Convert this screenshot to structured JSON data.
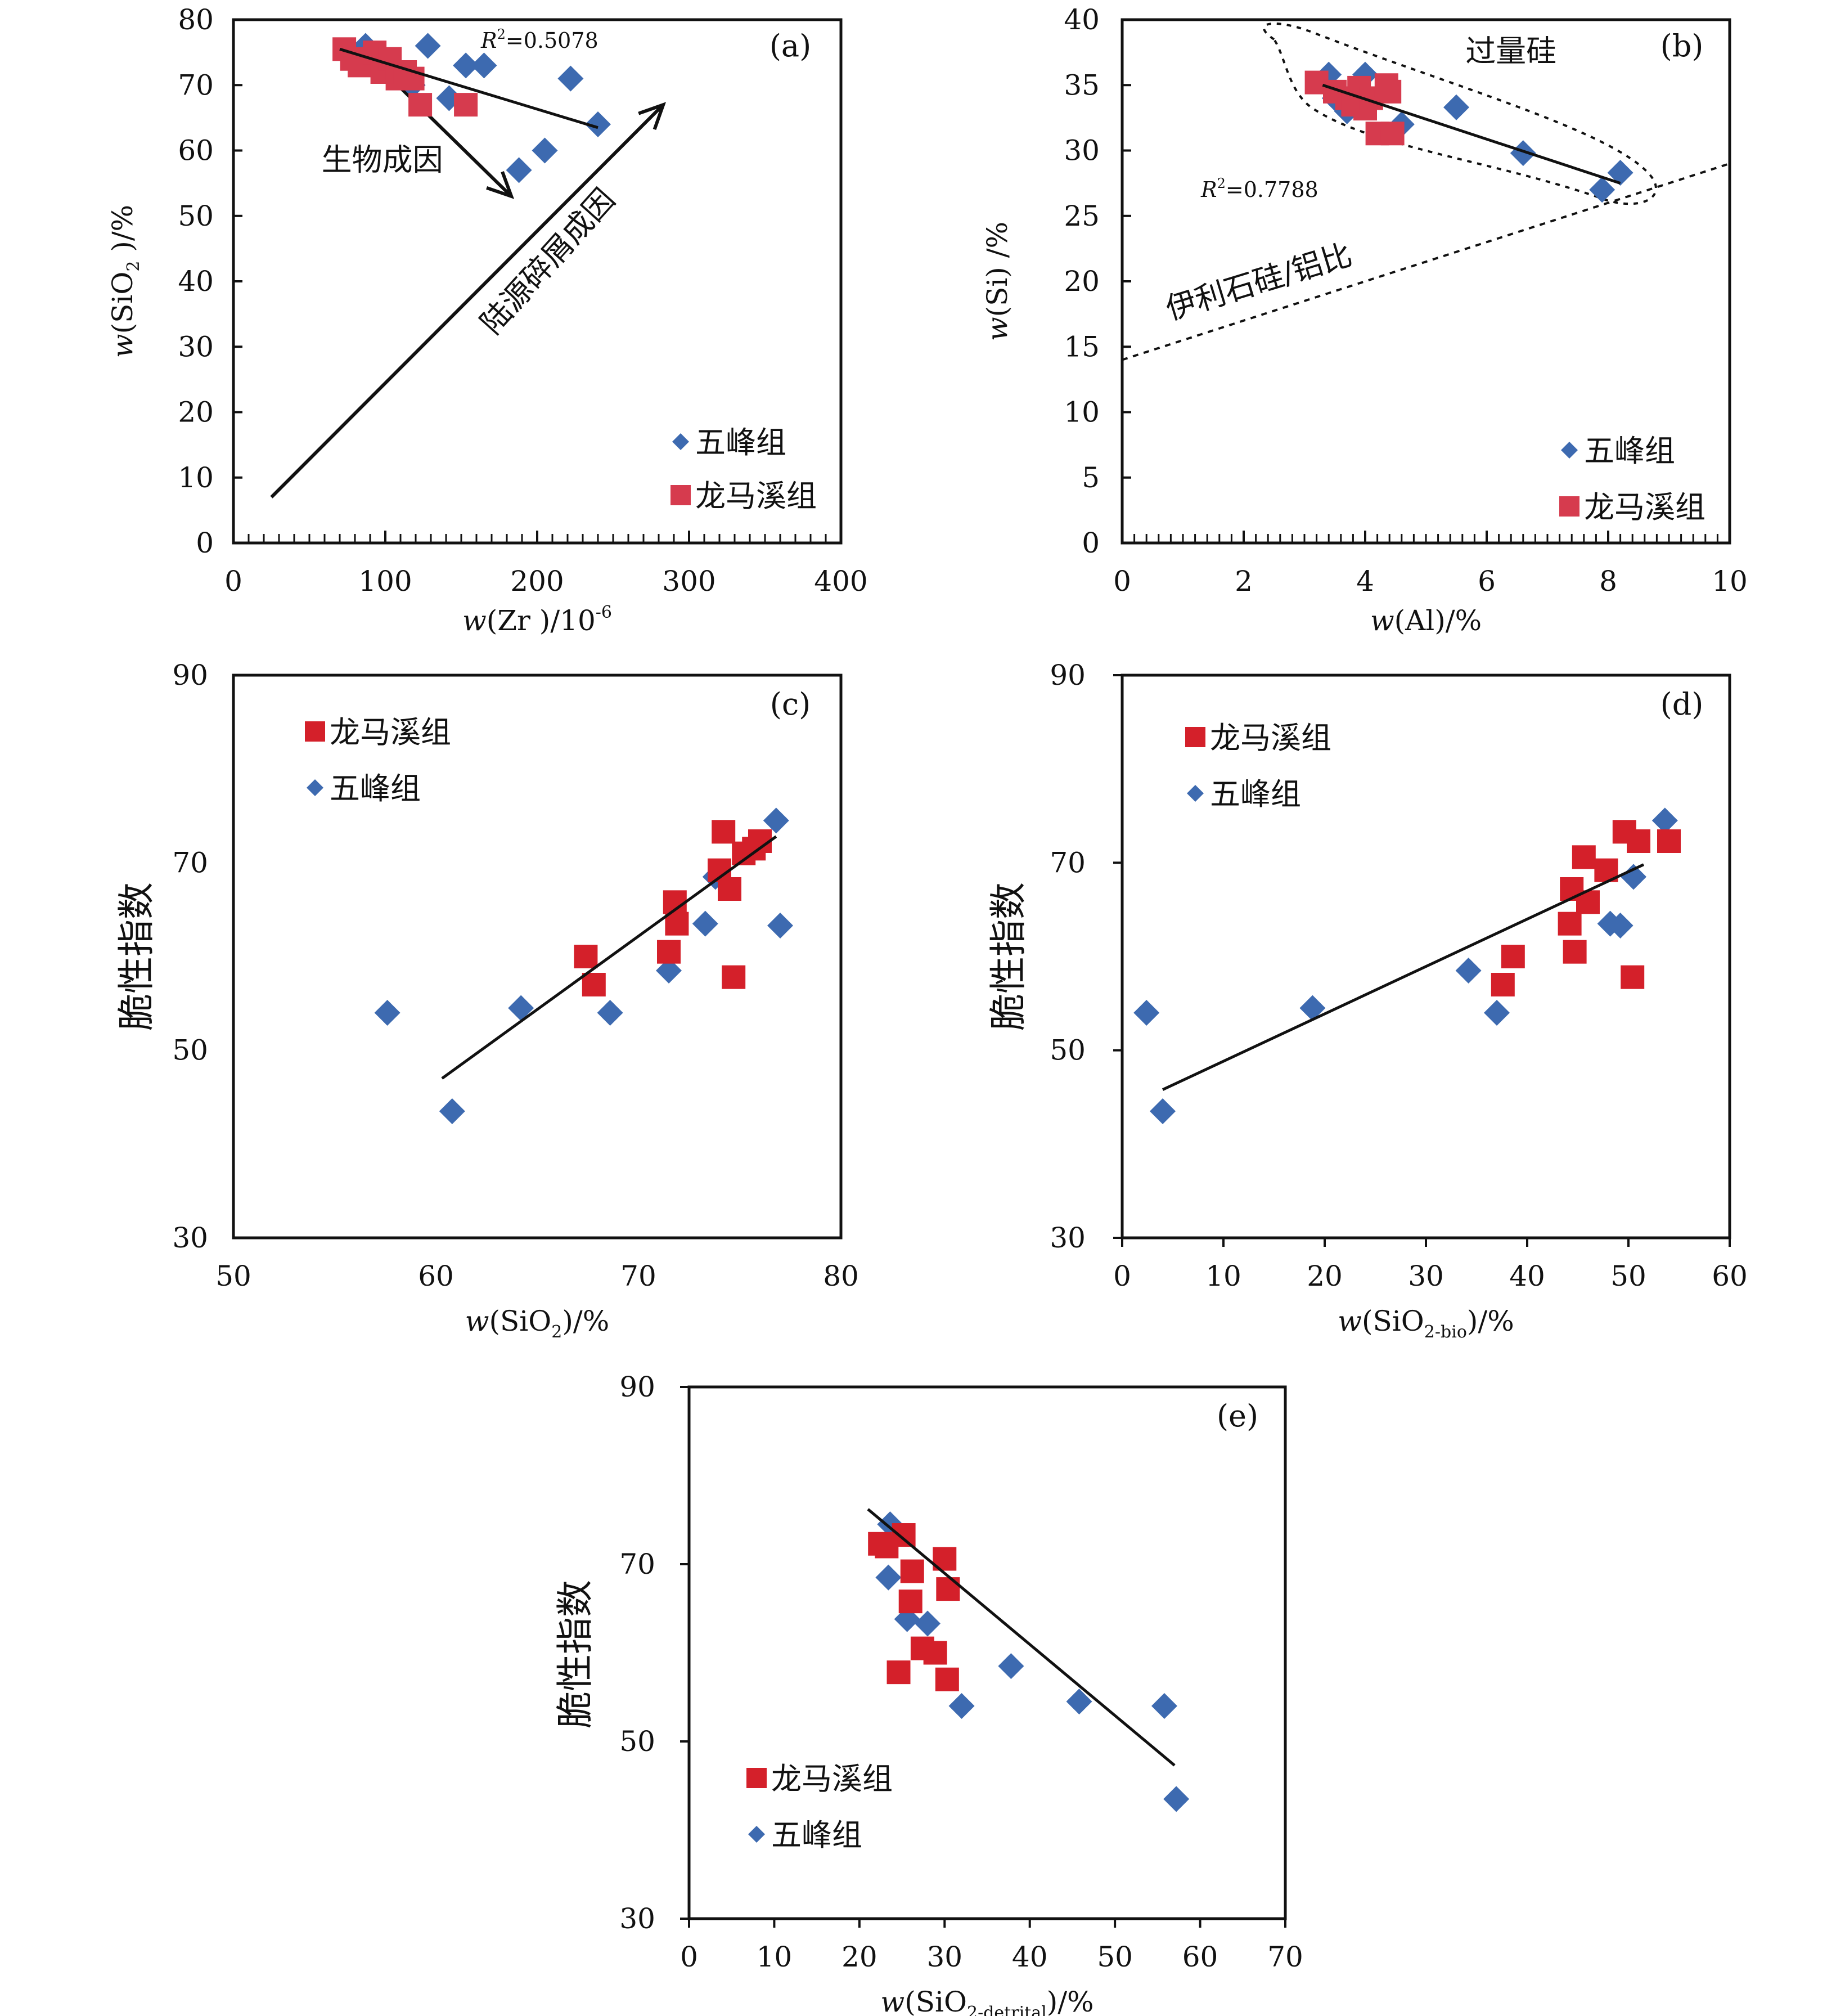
{
  "colors": {
    "wufeng": "#3d6ab0",
    "longmaxi_ab": "#d63b4e",
    "longmaxi_cde": "#d4202a",
    "axis": "#111111"
  },
  "chart_data": [
    {
      "id": "a",
      "type": "scatter",
      "panel_label": "(a)",
      "xlim": [
        0,
        400
      ],
      "ylim": [
        0,
        80
      ],
      "xticks": [
        "0",
        "100",
        "200",
        "300",
        "400"
      ],
      "yticks": [
        "0",
        "10",
        "20",
        "30",
        "40",
        "50",
        "60",
        "70",
        "80"
      ],
      "xlabel": {
        "var": "w",
        "text": "(Zr )/10",
        "sup": "-6"
      },
      "ylabel": {
        "var": "w",
        "text": "(SiO",
        "sub": "2",
        "tail": " )/%"
      },
      "r2": {
        "prefix": "R",
        "sup": "2",
        "value": "=0.5078"
      },
      "annotations": [
        {
          "text": "生物成因",
          "x": 98,
          "y": 57,
          "anchor": "middle",
          "rotate": 0
        },
        {
          "text": "陆源碎屑成因",
          "x": 212,
          "y": 42,
          "anchor": "middle",
          "rotate": -48
        }
      ],
      "arrows": [
        {
          "from": [
            25,
            7
          ],
          "to": [
            283,
            67
          ]
        },
        {
          "from": [
            95,
            73
          ],
          "to": [
            183,
            53
          ]
        }
      ],
      "legend": {
        "position": "bottom-right",
        "order": [
          "wufeng",
          "longmaxi"
        ]
      },
      "series": [
        {
          "key": "wufeng",
          "name": "五峰组",
          "marker": "diamond",
          "points": [
            [
              87,
              76
            ],
            [
              128,
              76
            ],
            [
              153,
              73
            ],
            [
              165,
              73
            ],
            [
              222,
              71
            ],
            [
              142,
              68
            ],
            [
              240,
              64
            ],
            [
              205,
              60
            ],
            [
              188,
              57
            ],
            [
              118,
              70
            ]
          ]
        },
        {
          "key": "longmaxi",
          "name": "龙马溪组",
          "marker": "square",
          "points": [
            [
              73,
              75.5
            ],
            [
              78,
              74
            ],
            [
              83,
              73
            ],
            [
              88,
              74
            ],
            [
              93,
              75
            ],
            [
              98,
              72
            ],
            [
              103,
              74
            ],
            [
              108,
              71
            ],
            [
              113,
              72
            ],
            [
              118,
              71
            ],
            [
              123,
              67
            ],
            [
              153,
              67
            ]
          ]
        }
      ],
      "trendline": [
        [
          70,
          75.5
        ],
        [
          240,
          63.5
        ]
      ]
    },
    {
      "id": "b",
      "type": "scatter",
      "panel_label": "(b)",
      "xlim": [
        0,
        10
      ],
      "ylim": [
        0,
        40
      ],
      "xticks": [
        "0",
        "2",
        "4",
        "6",
        "8",
        "10"
      ],
      "yticks": [
        "0",
        "5",
        "10",
        "15",
        "20",
        "25",
        "30",
        "35",
        "40"
      ],
      "xlabel": {
        "var": "w",
        "text": "(Al)/%"
      },
      "ylabel": {
        "var": "w",
        "text": "(Si) /%"
      },
      "r2": {
        "prefix": "R",
        "sup": "2",
        "value": "=0.7788"
      },
      "annotations": [
        {
          "text": "过量硅",
          "x": 6.4,
          "y": 36.8,
          "anchor": "middle",
          "rotate": 0
        },
        {
          "text": "伊利石硅/铝比",
          "x": 2.3,
          "y": 19.2,
          "anchor": "middle",
          "rotate": -17
        }
      ],
      "reference_line": [
        [
          0,
          14
        ],
        [
          10,
          29
        ]
      ],
      "legend": {
        "position": "bottom-right",
        "order": [
          "wufeng",
          "longmaxi"
        ]
      },
      "series": [
        {
          "key": "wufeng",
          "name": "五峰组",
          "marker": "diamond",
          "points": [
            [
              3.4,
              35.8
            ],
            [
              4.0,
              35.8
            ],
            [
              3.5,
              34.0
            ],
            [
              3.7,
              33.0
            ],
            [
              4.6,
              32.0
            ],
            [
              5.5,
              33.3
            ],
            [
              6.6,
              29.8
            ],
            [
              8.2,
              28.3
            ],
            [
              7.9,
              27.0
            ]
          ]
        },
        {
          "key": "longmaxi",
          "name": "龙马溪组",
          "marker": "square",
          "points": [
            [
              3.2,
              35.2
            ],
            [
              3.5,
              34.5
            ],
            [
              3.7,
              34.0
            ],
            [
              3.8,
              33.5
            ],
            [
              3.9,
              34.8
            ],
            [
              4.0,
              33.2
            ],
            [
              4.1,
              34.0
            ],
            [
              4.35,
              35.0
            ],
            [
              4.4,
              34.5
            ],
            [
              4.2,
              31.3
            ],
            [
              4.45,
              31.3
            ]
          ]
        }
      ],
      "trendline": [
        [
          3.3,
          35.0
        ],
        [
          8.2,
          27.5
        ]
      ]
    },
    {
      "id": "c",
      "type": "scatter",
      "panel_label": "(c)",
      "xlim": [
        50,
        80
      ],
      "ylim": [
        30,
        90
      ],
      "xticks": [
        "50",
        "60",
        "70",
        "80"
      ],
      "yticks": [
        "30",
        "50",
        "70",
        "90"
      ],
      "xlabel": {
        "var": "w",
        "text": "(SiO",
        "sub": "2",
        "tail": ")/%"
      },
      "ylabel": {
        "text": "脆性指数"
      },
      "legend": {
        "position": "top-left",
        "order": [
          "longmaxi",
          "wufeng"
        ]
      },
      "series": [
        {
          "key": "wufeng",
          "name": "五峰组",
          "marker": "diamond",
          "points": [
            [
              57.6,
              54
            ],
            [
              60.8,
              43.5
            ],
            [
              64.2,
              54.5
            ],
            [
              68.6,
              54
            ],
            [
              71.5,
              58.5
            ],
            [
              73.3,
              63.5
            ],
            [
              73.8,
              68.5
            ],
            [
              76.8,
              74.5
            ],
            [
              77.0,
              63.3
            ]
          ]
        },
        {
          "key": "longmaxi",
          "name": "龙马溪组",
          "marker": "square",
          "points": [
            [
              67.4,
              60
            ],
            [
              67.8,
              57
            ],
            [
              71.5,
              60.5
            ],
            [
              71.8,
              65.8
            ],
            [
              71.9,
              63.5
            ],
            [
              74.2,
              73.3
            ],
            [
              74.0,
              69.2
            ],
            [
              74.5,
              67.2
            ],
            [
              74.7,
              57.8
            ],
            [
              75.2,
              71.0
            ],
            [
              75.7,
              71.5
            ],
            [
              76.0,
              72.3
            ]
          ]
        }
      ],
      "trendline": [
        [
          60.3,
          47.0
        ],
        [
          76.8,
          72.8
        ]
      ]
    },
    {
      "id": "d",
      "type": "scatter",
      "panel_label": "(d)",
      "xlim": [
        0,
        60
      ],
      "ylim": [
        30,
        90
      ],
      "xticks": [
        "0",
        "10",
        "20",
        "30",
        "40",
        "50",
        "60"
      ],
      "yticks": [
        "30",
        "50",
        "70",
        "90"
      ],
      "xlabel": {
        "var": "w",
        "text": "(SiO",
        "sub": "2-bio",
        "tail": ")/%"
      },
      "ylabel": {
        "text": "脆性指数"
      },
      "legend": {
        "position": "top-left",
        "order": [
          "longmaxi",
          "wufeng"
        ]
      },
      "series": [
        {
          "key": "wufeng",
          "name": "五峰组",
          "marker": "diamond",
          "points": [
            [
              2.4,
              54
            ],
            [
              4.0,
              43.5
            ],
            [
              18.8,
              54.5
            ],
            [
              34.2,
              58.5
            ],
            [
              37.0,
              54
            ],
            [
              48.2,
              63.5
            ],
            [
              49.2,
              63.3
            ],
            [
              50.5,
              68.5
            ],
            [
              53.6,
              74.5
            ]
          ]
        },
        {
          "key": "longmaxi",
          "name": "龙马溪组",
          "marker": "square",
          "points": [
            [
              37.6,
              57
            ],
            [
              38.6,
              60
            ],
            [
              44.2,
              63.5
            ],
            [
              44.4,
              67.2
            ],
            [
              44.7,
              60.5
            ],
            [
              45.6,
              70.6
            ],
            [
              46.0,
              65.8
            ],
            [
              47.8,
              69.2
            ],
            [
              49.6,
              73.3
            ],
            [
              50.4,
              57.8
            ],
            [
              51.0,
              72.3
            ],
            [
              54.0,
              72.3
            ]
          ]
        }
      ],
      "trendline": [
        [
          4.0,
          45.8
        ],
        [
          51.5,
          69.8
        ]
      ]
    },
    {
      "id": "e",
      "type": "scatter",
      "panel_label": "(e)",
      "xlim": [
        0,
        70
      ],
      "ylim": [
        30,
        90
      ],
      "xticks": [
        "0",
        "10",
        "20",
        "30",
        "40",
        "50",
        "60",
        "70"
      ],
      "yticks": [
        "30",
        "50",
        "70",
        "90"
      ],
      "xlabel": {
        "var": "w",
        "text": "(SiO",
        "sub": "2-detrital",
        "tail": ")/%"
      },
      "ylabel": {
        "text": "脆性指数"
      },
      "legend": {
        "position": "bottom-left",
        "order": [
          "longmaxi",
          "wufeng"
        ]
      },
      "series": [
        {
          "key": "wufeng",
          "name": "五峰组",
          "marker": "diamond",
          "points": [
            [
              23.6,
              74.5
            ],
            [
              23.4,
              68.5
            ],
            [
              25.6,
              63.8
            ],
            [
              28.0,
              63.3
            ],
            [
              32.0,
              54
            ],
            [
              37.8,
              58.5
            ],
            [
              45.8,
              54.5
            ],
            [
              55.8,
              54
            ],
            [
              57.2,
              43.5
            ]
          ]
        },
        {
          "key": "longmaxi",
          "name": "龙马溪组",
          "marker": "square",
          "points": [
            [
              22.4,
              72.3
            ],
            [
              23.2,
              72.0
            ],
            [
              25.2,
              73.3
            ],
            [
              26.2,
              69.2
            ],
            [
              26.0,
              65.8
            ],
            [
              27.4,
              60.5
            ],
            [
              28.9,
              60.0
            ],
            [
              24.6,
              57.8
            ],
            [
              30.3,
              57.0
            ],
            [
              30.0,
              70.6
            ],
            [
              30.4,
              67.2
            ]
          ]
        }
      ],
      "trendline": [
        [
          21.0,
          76.2
        ],
        [
          57.0,
          47.3
        ]
      ]
    }
  ]
}
